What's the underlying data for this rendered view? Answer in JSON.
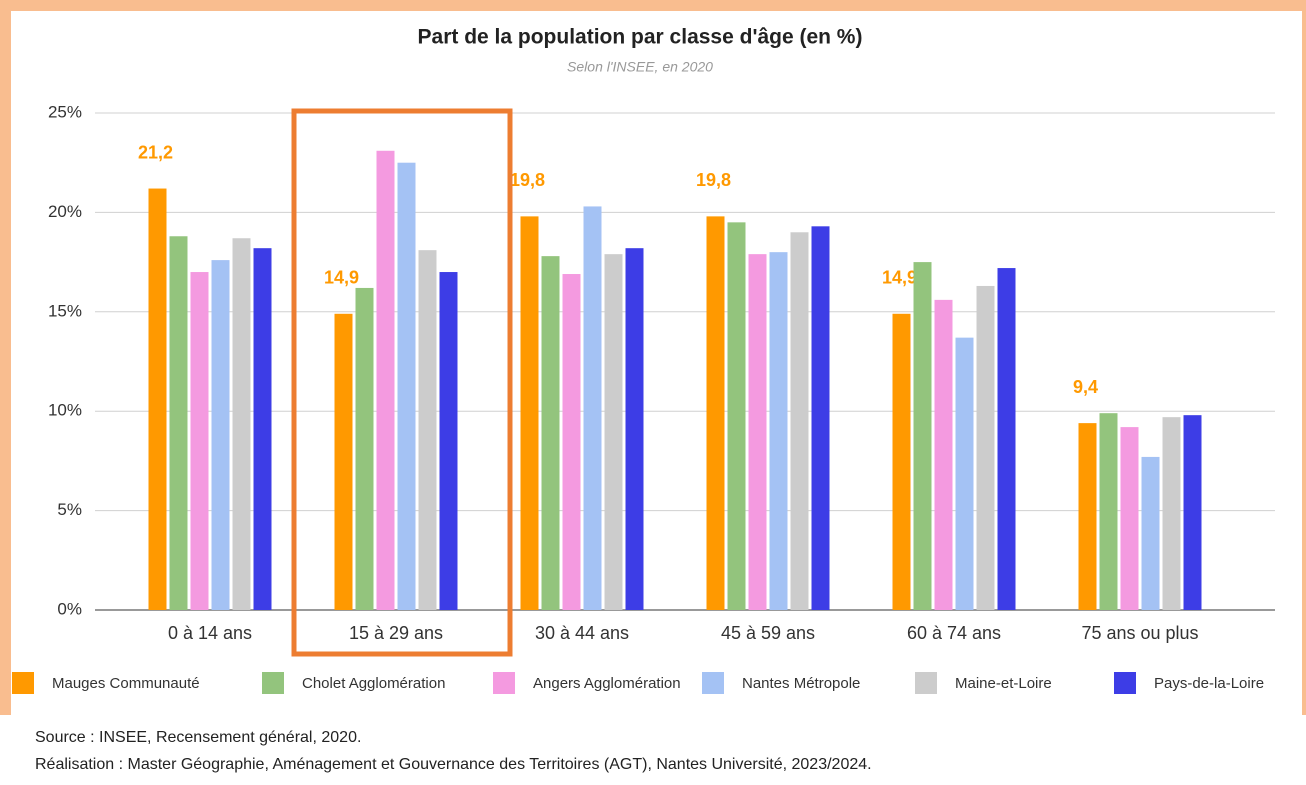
{
  "chart_data": {
    "type": "bar",
    "title": "Part de la population par classe d'âge (en %)",
    "subtitle": "Selon l'INSEE, en 2020",
    "categories": [
      "0 à 14 ans",
      "15 à 29 ans",
      "30 à 44 ans",
      "45 à 59 ans",
      "60 à 74 ans",
      "75 ans ou plus"
    ],
    "series": [
      {
        "name": "Mauges Communauté",
        "color": "#ff9900",
        "values": [
          21.2,
          14.9,
          19.8,
          19.8,
          14.9,
          9.4
        ],
        "value_labels": [
          "21,2",
          "14,9",
          "19,8",
          "19,8",
          "14,9",
          "9,4"
        ]
      },
      {
        "name": "Cholet Agglomération",
        "color": "#93c47d",
        "values": [
          18.8,
          16.2,
          17.8,
          19.5,
          17.5,
          9.9
        ]
      },
      {
        "name": "Angers Agglomération",
        "color": "#f49ae0",
        "values": [
          17.0,
          23.1,
          16.9,
          17.9,
          15.6,
          9.2
        ]
      },
      {
        "name": "Nantes Métropole",
        "color": "#a4c2f4",
        "values": [
          17.6,
          22.5,
          20.3,
          18.0,
          13.7,
          7.7
        ]
      },
      {
        "name": "Maine-et-Loire",
        "color": "#cccccc",
        "values": [
          18.7,
          18.1,
          17.9,
          19.0,
          16.3,
          9.7
        ]
      },
      {
        "name": "Pays-de-la-Loire",
        "color": "#3d3de6",
        "values": [
          18.2,
          17.0,
          18.2,
          19.3,
          17.2,
          9.8
        ]
      }
    ],
    "ylim": [
      0,
      25
    ],
    "yticks": [
      {
        "value": 0,
        "label": "0%"
      },
      {
        "value": 5,
        "label": "5%"
      },
      {
        "value": 10,
        "label": "10%"
      },
      {
        "value": 15,
        "label": "15%"
      },
      {
        "value": 20,
        "label": "20%"
      },
      {
        "value": 25,
        "label": "25%"
      }
    ],
    "grid": true,
    "legend": "bottom",
    "source": "Source : INSEE, Recensement général, 2020.",
    "credit": "Réalisation : Master Géographie, Aménagement et Gouvernance des Territoires (AGT), Nantes Université, 2023/2024."
  }
}
